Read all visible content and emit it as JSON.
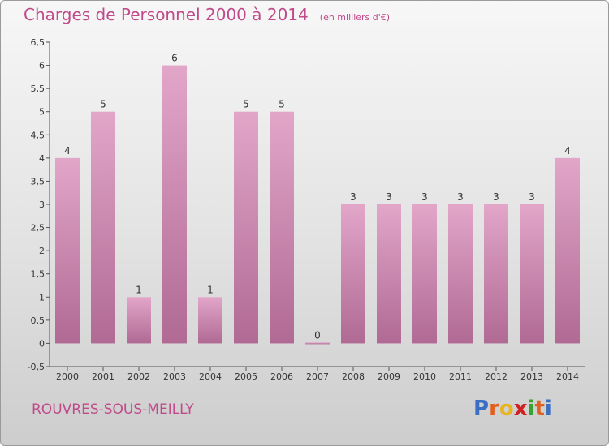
{
  "title": "Charges de Personnel 2000 à 2014",
  "subtitle": "(en milliers d'€)",
  "location": "ROUVRES-SOUS-MEILLY",
  "logo": {
    "text": "Proxiti",
    "letter_colors": [
      "#3a6fc4",
      "#e06020",
      "#e8b420",
      "#d02020",
      "#3aa030",
      "#e06020",
      "#3a6fc4"
    ]
  },
  "colors": {
    "bar_top": "#e2a6c9",
    "bar_bottom": "#b06a94",
    "accent": "#c04a8a"
  },
  "chart_data": {
    "type": "bar",
    "categories": [
      "2000",
      "2001",
      "2002",
      "2003",
      "2004",
      "2005",
      "2006",
      "2007",
      "2008",
      "2009",
      "2010",
      "2011",
      "2012",
      "2013",
      "2014"
    ],
    "values": [
      4,
      5,
      1,
      6,
      1,
      5,
      5,
      0,
      3,
      3,
      3,
      3,
      3,
      3,
      4
    ],
    "value_labels": [
      "4",
      "5",
      "1",
      "6",
      "1",
      "5",
      "5",
      "0",
      "3",
      "3",
      "3",
      "3",
      "3",
      "3",
      "4"
    ],
    "ylim": [
      -0.5,
      6.5
    ],
    "yticks": [
      -0.5,
      0,
      0.5,
      1,
      1.5,
      2,
      2.5,
      3,
      3.5,
      4,
      4.5,
      5,
      5.5,
      6,
      6.5
    ],
    "ytick_labels": [
      "-0,5",
      "0",
      "0,5",
      "1",
      "1,5",
      "2",
      "2,5",
      "3",
      "3,5",
      "4",
      "4,5",
      "5",
      "5,5",
      "6",
      "6,5"
    ],
    "grid": false
  }
}
